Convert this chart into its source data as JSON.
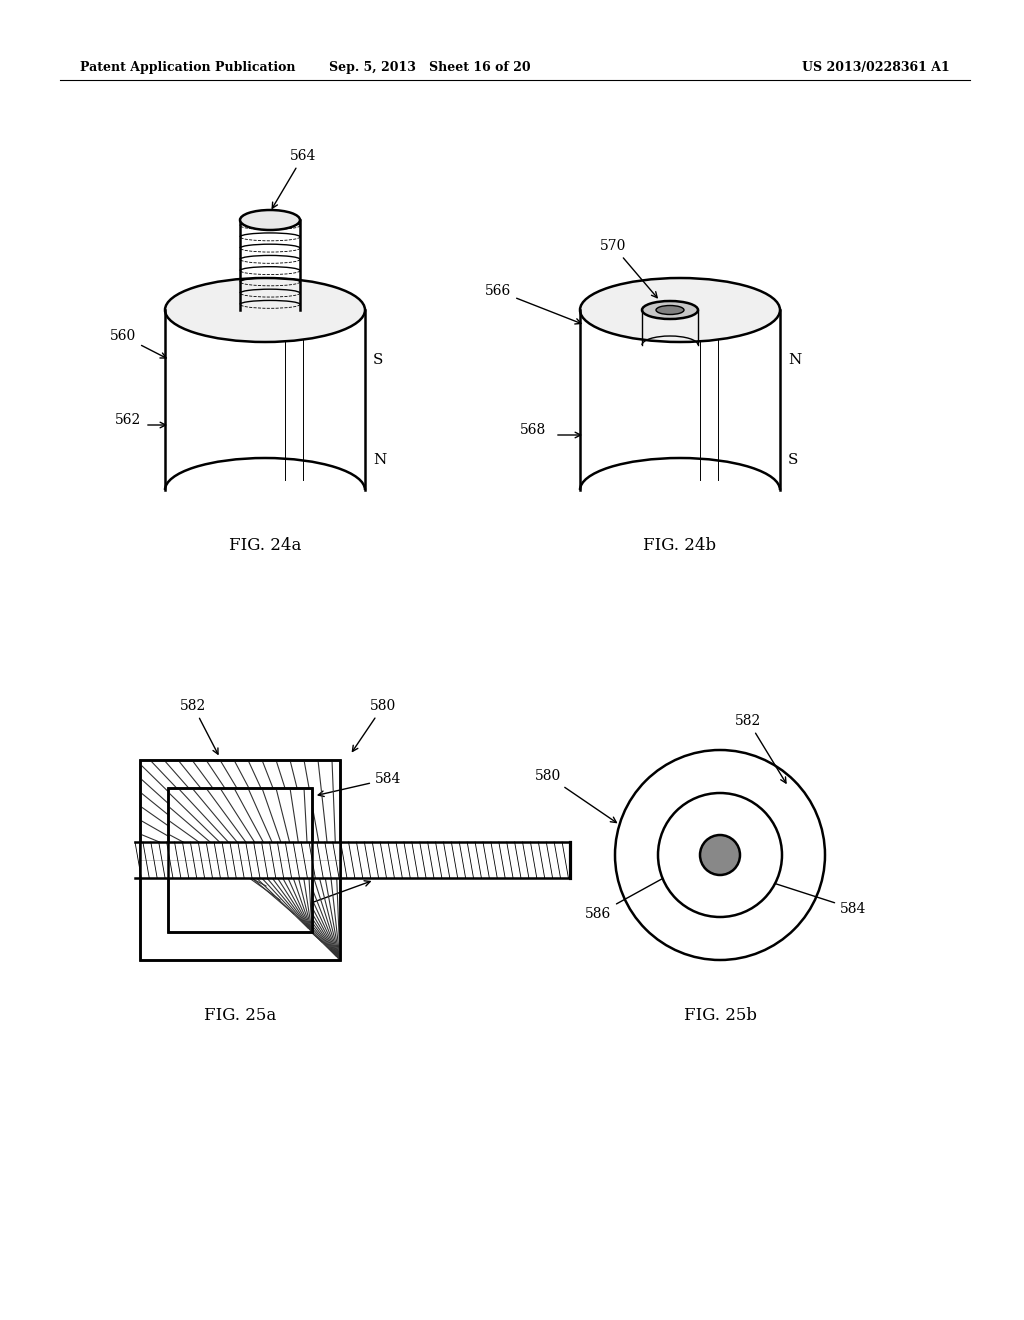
{
  "bg_color": "#ffffff",
  "header_left": "Patent Application Publication",
  "header_mid": "Sep. 5, 2013   Sheet 16 of 20",
  "header_right": "US 2013/0228361 A1",
  "fig24a_label": "FIG. 24a",
  "fig24b_label": "FIG. 24b",
  "fig25a_label": "FIG. 25a",
  "fig25b_label": "FIG. 25b"
}
